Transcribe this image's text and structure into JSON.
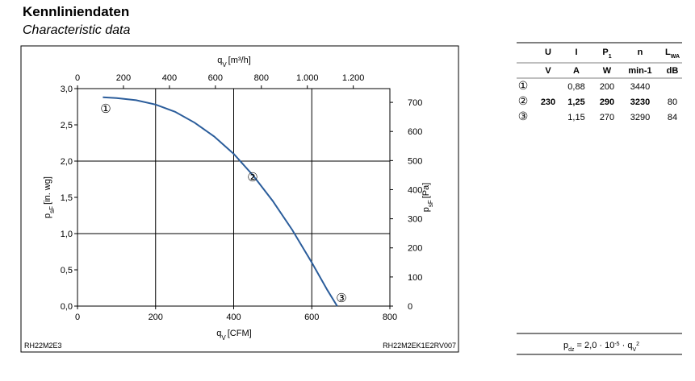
{
  "header": {
    "title": "Kennliniendaten",
    "subtitle": "Characteristic data"
  },
  "chart_data": {
    "type": "line",
    "x_label": {
      "symbol": "q",
      "sub": "V",
      "unit": "[CFM]"
    },
    "x2_label": {
      "symbol": "q",
      "sub": "V",
      "unit": "[m³/h]"
    },
    "y_label": {
      "symbol": "p",
      "sub": "sF",
      "unit": "[in. wg]"
    },
    "y2_label": {
      "symbol": "p",
      "sub": "sF",
      "unit": "[Pa]"
    },
    "xlim": [
      0,
      800
    ],
    "xticks": [
      0,
      200,
      400,
      600,
      800
    ],
    "x2lim": [
      0,
      1359.2
    ],
    "x2ticks": [
      0,
      200,
      400,
      600,
      800,
      {
        "value": 1000,
        "label": "1.000"
      },
      {
        "value": 1200,
        "label": "1.200"
      }
    ],
    "ylim": [
      0,
      3.0
    ],
    "yticks": [
      {
        "value": 0,
        "label": "0,0"
      },
      {
        "value": 0.5,
        "label": "0,5"
      },
      {
        "value": 1.0,
        "label": "1,0"
      },
      {
        "value": 1.5,
        "label": "1,5"
      },
      {
        "value": 2.0,
        "label": "2,0"
      },
      {
        "value": 2.5,
        "label": "2,5"
      },
      {
        "value": 3.0,
        "label": "3,0"
      }
    ],
    "y2lim": [
      0,
      747.3
    ],
    "y2ticks": [
      0,
      100,
      200,
      300,
      400,
      500,
      600,
      700
    ],
    "x_grid": [
      200,
      400,
      600
    ],
    "y_grid": [
      1.0,
      2.0
    ],
    "series": [
      {
        "color": "#2b5d9b",
        "x": [
          65,
          100,
          150,
          200,
          250,
          300,
          350,
          400,
          450,
          500,
          550,
          600,
          640,
          665
        ],
        "values": [
          2.88,
          2.87,
          2.84,
          2.78,
          2.68,
          2.53,
          2.34,
          2.1,
          1.8,
          1.45,
          1.05,
          0.6,
          0.22,
          0
        ]
      }
    ],
    "annotations": [
      "①",
      "②",
      "③"
    ],
    "footer_left": "RH22M2E3",
    "footer_right": "RH22M2EK1E2RV007"
  },
  "table": {
    "header": [
      "U",
      "I",
      "P",
      "n",
      "L"
    ],
    "header_sub": [
      "",
      "",
      "1",
      "",
      "WA"
    ],
    "units": [
      "V",
      "A",
      "W",
      "min-1",
      "dB"
    ],
    "rows": [
      [
        "①",
        "",
        "0,88",
        "200",
        "3440",
        ""
      ],
      [
        "②",
        "230",
        "1,25",
        "290",
        "3230",
        "80"
      ],
      [
        "③",
        "",
        "1,15",
        "270",
        "3290",
        "84"
      ]
    ]
  },
  "formula": {
    "lhs": "p",
    "lhs_sub": "dz",
    "mid": " = 2,0 · 10",
    "exp": "-5",
    "tail": " · q",
    "tail_sub": "V",
    "tail_sup": "2"
  }
}
